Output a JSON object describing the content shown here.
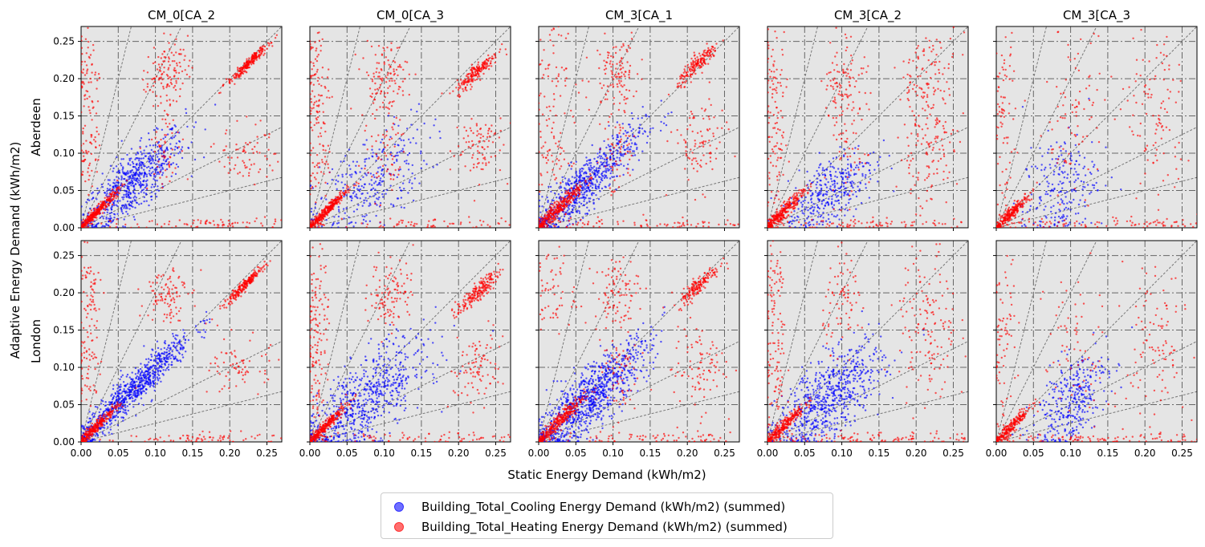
{
  "figure": {
    "xlabel": "Static Energy Demand (kWh/m2)",
    "ylabel": "Adaptive Energy Demand (kWh/m2)"
  },
  "legend": {
    "items": [
      {
        "label": "Building_Total_Cooling Energy Demand (kWh/m2) (summed)",
        "color": "#0000ff"
      },
      {
        "label": "Building_Total_Heating Energy Demand (kWh/m2) (summed)",
        "color": "#ff0000"
      }
    ]
  },
  "chart_data": {
    "type": "scatter",
    "columns": [
      "CM_0[CA_2",
      "CM_0[CA_3",
      "CM_3[CA_1",
      "CM_3[CA_2",
      "CM_3[CA_3"
    ],
    "rows": [
      "Aberdeen",
      "London"
    ],
    "xlim": [
      0,
      0.27
    ],
    "ylim": [
      0,
      0.27
    ],
    "xticks": [
      "0.00",
      "0.05",
      "0.10",
      "0.15",
      "0.20",
      "0.25"
    ],
    "yticks": [
      "0.00",
      "0.05",
      "0.10",
      "0.15",
      "0.20",
      "0.25"
    ],
    "grid": true,
    "reference_line_slopes": [
      0.25,
      0.5,
      1,
      2,
      4
    ],
    "background": "#e5e5e5",
    "series": [
      {
        "name": "Building_Total_Cooling Energy Demand (kWh/m2) (summed)",
        "color": "#0000ff",
        "panels": [
          {
            "row": 0,
            "col": 0,
            "clusters": [
              [
                0.07,
                0.06,
                0.035,
                0.035,
                0.8,
                650
              ]
            ]
          },
          {
            "row": 0,
            "col": 1,
            "clusters": [
              [
                0.08,
                0.06,
                0.04,
                0.04,
                0.6,
                300
              ]
            ]
          },
          {
            "row": 0,
            "col": 2,
            "clusters": [
              [
                0.06,
                0.055,
                0.04,
                0.04,
                0.9,
                700
              ]
            ]
          },
          {
            "row": 0,
            "col": 3,
            "clusters": [
              [
                0.085,
                0.05,
                0.03,
                0.03,
                0.6,
                350
              ]
            ]
          },
          {
            "row": 0,
            "col": 4,
            "clusters": [
              [
                0.085,
                0.05,
                0.025,
                0.04,
                0.3,
                220
              ]
            ]
          },
          {
            "row": 1,
            "col": 0,
            "clusters": [
              [
                0.07,
                0.07,
                0.04,
                0.04,
                0.95,
                800
              ]
            ]
          },
          {
            "row": 1,
            "col": 1,
            "clusters": [
              [
                0.075,
                0.055,
                0.04,
                0.04,
                0.7,
                650
              ]
            ]
          },
          {
            "row": 1,
            "col": 2,
            "clusters": [
              [
                0.07,
                0.06,
                0.04,
                0.04,
                0.85,
                900
              ]
            ]
          },
          {
            "row": 1,
            "col": 3,
            "clusters": [
              [
                0.085,
                0.06,
                0.035,
                0.035,
                0.65,
                650
              ]
            ]
          },
          {
            "row": 1,
            "col": 4,
            "clusters": [
              [
                0.1,
                0.055,
                0.025,
                0.035,
                0.55,
                330
              ]
            ]
          }
        ]
      },
      {
        "name": "Building_Total_Heating Energy Demand (kWh/m2) (summed)",
        "color": "#ff0000",
        "panels": [
          {
            "row": 0,
            "col": 0,
            "clusters": [
              [
                0.02,
                0.02,
                0.015,
                0.015,
                0.97,
                360
              ],
              [
                0.225,
                0.22,
                0.014,
                0.014,
                0.97,
                230
              ],
              [
                0.115,
                0.21,
                0.014,
                0.02,
                0.1,
                120
              ],
              [
                0.01,
                0.21,
                0.008,
                0.03,
                0.0,
                60
              ],
              [
                0.01,
                0.11,
                0.008,
                0.03,
                0.0,
                60
              ],
              [
                0.225,
                0.1,
                0.02,
                0.02,
                0.1,
                70
              ],
              [
                0.115,
                0.11,
                0.012,
                0.03,
                0.1,
                60
              ],
              [
                0.18,
                0.005,
                0.08,
                0.004,
                0.0,
                90
              ]
            ]
          },
          {
            "row": 0,
            "col": 1,
            "clusters": [
              [
                0.02,
                0.02,
                0.015,
                0.015,
                0.97,
                320
              ],
              [
                0.225,
                0.21,
                0.014,
                0.014,
                0.9,
                200
              ],
              [
                0.1,
                0.2,
                0.016,
                0.025,
                0.1,
                120
              ],
              [
                0.01,
                0.2,
                0.008,
                0.04,
                0.0,
                70
              ],
              [
                0.01,
                0.1,
                0.008,
                0.04,
                0.0,
                70
              ],
              [
                0.225,
                0.11,
                0.018,
                0.025,
                0.2,
                90
              ],
              [
                0.1,
                0.1,
                0.015,
                0.03,
                0.2,
                60
              ],
              [
                0.15,
                0.005,
                0.1,
                0.004,
                0.0,
                90
              ]
            ]
          },
          {
            "row": 0,
            "col": 2,
            "clusters": [
              [
                0.025,
                0.025,
                0.018,
                0.018,
                0.95,
                340
              ],
              [
                0.215,
                0.22,
                0.014,
                0.014,
                0.9,
                180
              ],
              [
                0.105,
                0.21,
                0.015,
                0.025,
                0.1,
                110
              ],
              [
                0.02,
                0.21,
                0.015,
                0.03,
                0.0,
                60
              ],
              [
                0.02,
                0.1,
                0.012,
                0.03,
                0.0,
                60
              ],
              [
                0.215,
                0.11,
                0.018,
                0.03,
                0.1,
                90
              ],
              [
                0.105,
                0.1,
                0.014,
                0.03,
                0.1,
                60
              ],
              [
                0.15,
                0.005,
                0.1,
                0.004,
                0.0,
                90
              ]
            ]
          },
          {
            "row": 0,
            "col": 3,
            "clusters": [
              [
                0.02,
                0.02,
                0.015,
                0.015,
                0.95,
                300
              ],
              [
                0.215,
                0.2,
                0.02,
                0.03,
                0.3,
                110
              ],
              [
                0.105,
                0.2,
                0.015,
                0.03,
                0.1,
                90
              ],
              [
                0.01,
                0.2,
                0.008,
                0.04,
                0.0,
                60
              ],
              [
                0.01,
                0.1,
                0.008,
                0.04,
                0.0,
                60
              ],
              [
                0.215,
                0.1,
                0.02,
                0.04,
                0.0,
                120
              ],
              [
                0.105,
                0.1,
                0.015,
                0.04,
                0.1,
                60
              ],
              [
                0.15,
                0.005,
                0.1,
                0.004,
                0.0,
                100
              ]
            ]
          },
          {
            "row": 0,
            "col": 4,
            "clusters": [
              [
                0.02,
                0.02,
                0.014,
                0.014,
                0.95,
                240
              ],
              [
                0.215,
                0.15,
                0.02,
                0.06,
                0.0,
                110
              ],
              [
                0.105,
                0.15,
                0.02,
                0.06,
                0.0,
                90
              ],
              [
                0.01,
                0.15,
                0.008,
                0.06,
                0.0,
                80
              ],
              [
                0.15,
                0.005,
                0.1,
                0.004,
                0.0,
                90
              ]
            ]
          },
          {
            "row": 1,
            "col": 0,
            "clusters": [
              [
                0.02,
                0.02,
                0.015,
                0.015,
                0.97,
                280
              ],
              [
                0.22,
                0.21,
                0.014,
                0.014,
                0.97,
                220
              ],
              [
                0.115,
                0.2,
                0.014,
                0.02,
                0.1,
                100
              ],
              [
                0.01,
                0.2,
                0.008,
                0.03,
                0.0,
                60
              ],
              [
                0.01,
                0.1,
                0.008,
                0.03,
                0.0,
                60
              ],
              [
                0.215,
                0.1,
                0.02,
                0.02,
                0.1,
                70
              ],
              [
                0.18,
                0.005,
                0.08,
                0.004,
                0.0,
                90
              ]
            ]
          },
          {
            "row": 1,
            "col": 1,
            "clusters": [
              [
                0.02,
                0.02,
                0.015,
                0.015,
                0.97,
                280
              ],
              [
                0.225,
                0.2,
                0.014,
                0.014,
                0.9,
                200
              ],
              [
                0.11,
                0.2,
                0.015,
                0.025,
                0.1,
                110
              ],
              [
                0.01,
                0.19,
                0.008,
                0.04,
                0.0,
                70
              ],
              [
                0.01,
                0.1,
                0.008,
                0.04,
                0.0,
                70
              ],
              [
                0.225,
                0.1,
                0.018,
                0.025,
                0.2,
                90
              ],
              [
                0.15,
                0.005,
                0.1,
                0.004,
                0.0,
                90
              ]
            ]
          },
          {
            "row": 1,
            "col": 2,
            "clusters": [
              [
                0.025,
                0.025,
                0.018,
                0.018,
                0.95,
                320
              ],
              [
                0.215,
                0.21,
                0.014,
                0.014,
                0.9,
                170
              ],
              [
                0.105,
                0.2,
                0.015,
                0.025,
                0.1,
                100
              ],
              [
                0.02,
                0.2,
                0.015,
                0.03,
                0.0,
                60
              ],
              [
                0.215,
                0.1,
                0.018,
                0.03,
                0.1,
                90
              ],
              [
                0.105,
                0.09,
                0.014,
                0.03,
                0.1,
                60
              ],
              [
                0.15,
                0.005,
                0.1,
                0.004,
                0.0,
                90
              ]
            ]
          },
          {
            "row": 1,
            "col": 3,
            "clusters": [
              [
                0.02,
                0.02,
                0.015,
                0.015,
                0.95,
                280
              ],
              [
                0.215,
                0.15,
                0.02,
                0.06,
                0.0,
                150
              ],
              [
                0.105,
                0.19,
                0.015,
                0.03,
                0.1,
                80
              ],
              [
                0.01,
                0.18,
                0.008,
                0.05,
                0.0,
                70
              ],
              [
                0.01,
                0.08,
                0.008,
                0.04,
                0.0,
                60
              ],
              [
                0.15,
                0.005,
                0.1,
                0.004,
                0.0,
                110
              ]
            ]
          },
          {
            "row": 1,
            "col": 4,
            "clusters": [
              [
                0.02,
                0.02,
                0.014,
                0.014,
                0.95,
                220
              ],
              [
                0.215,
                0.13,
                0.02,
                0.07,
                0.0,
                110
              ],
              [
                0.105,
                0.12,
                0.02,
                0.06,
                0.0,
                70
              ],
              [
                0.01,
                0.13,
                0.008,
                0.06,
                0.0,
                80
              ],
              [
                0.15,
                0.004,
                0.1,
                0.003,
                0.0,
                100
              ]
            ]
          }
        ]
      }
    ]
  }
}
